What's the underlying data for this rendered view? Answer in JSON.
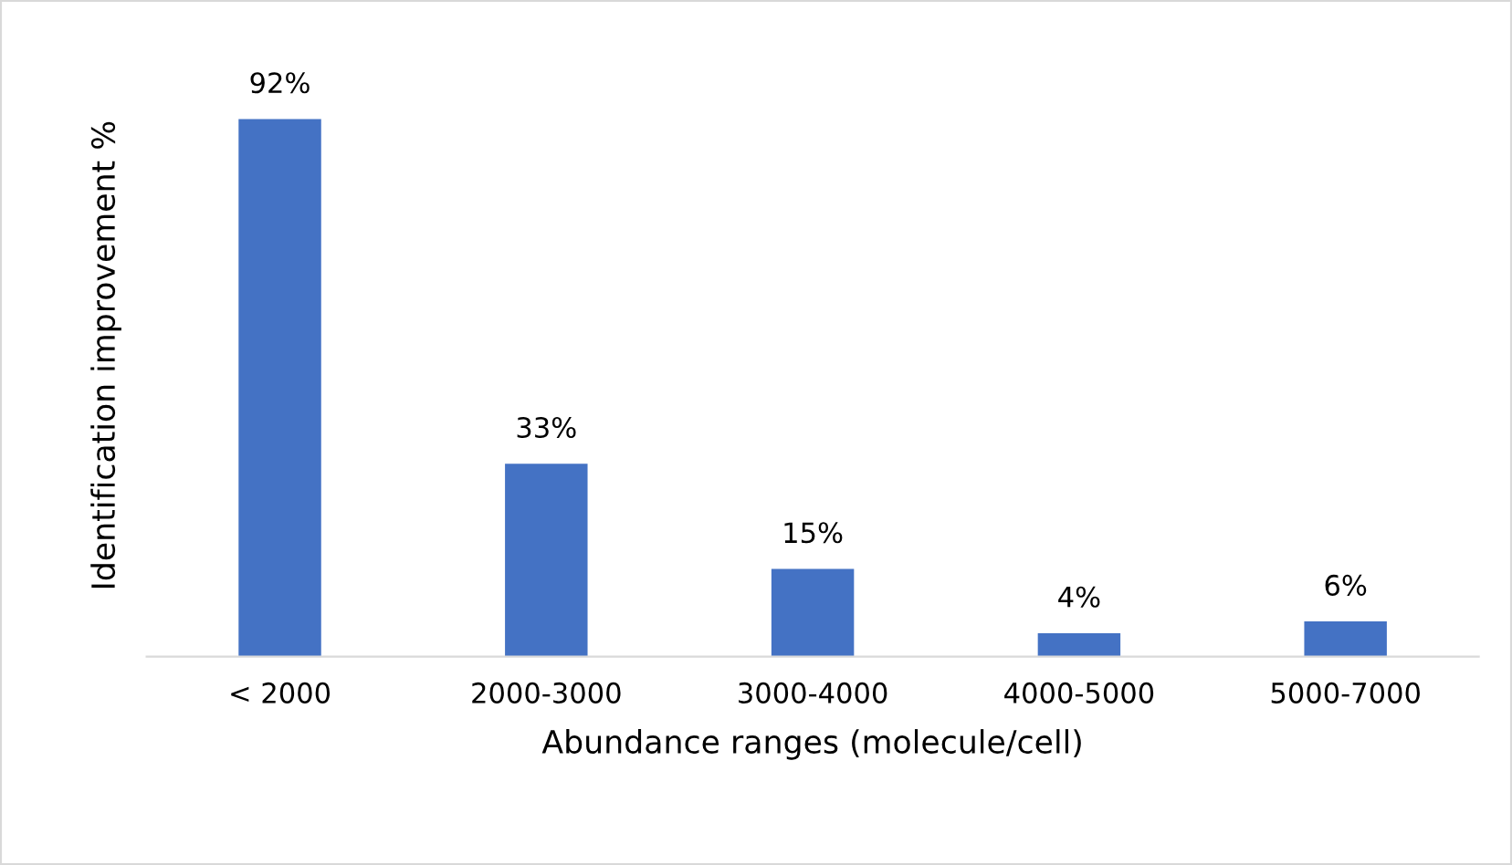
{
  "chart_data": {
    "type": "bar",
    "xlabel": "Abundance ranges (molecule/cell)",
    "ylabel": "Identification improvement %",
    "categories": [
      "< 2000",
      "2000-3000",
      "3000-4000",
      "4000-5000",
      "5000-7000"
    ],
    "values": [
      92,
      33,
      15,
      4,
      6
    ],
    "value_labels": [
      "92%",
      "33%",
      "15%",
      "4%",
      "6%"
    ],
    "color": "#4472c4",
    "grid": false,
    "legend": false
  }
}
